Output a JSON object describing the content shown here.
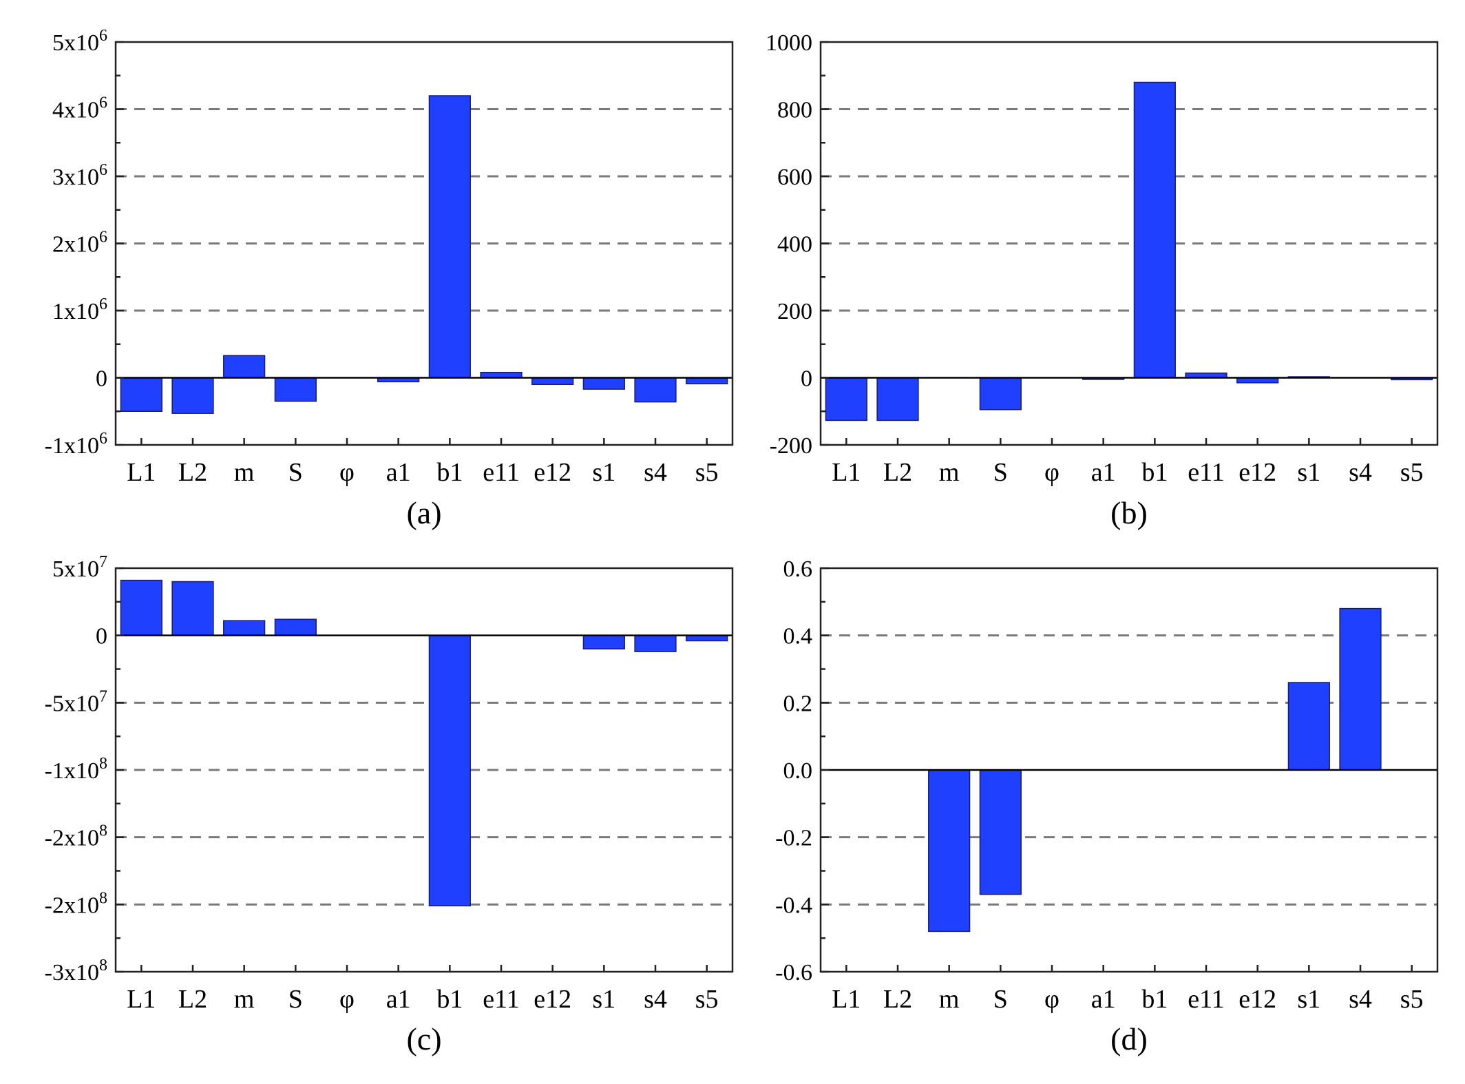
{
  "chart_data": [
    {
      "type": "bar",
      "caption": "(a)",
      "categories": [
        "L1",
        "L2",
        "m",
        "S",
        "φ",
        "a1",
        "b1",
        "e11",
        "e12",
        "s1",
        "s4",
        "s5"
      ],
      "values": [
        -500000,
        -530000,
        330000,
        -350000,
        0,
        -60000,
        4200000,
        80000,
        -100000,
        -170000,
        -360000,
        -90000
      ],
      "ylim": [
        -1000000,
        5000000
      ],
      "yticks": [
        {
          "value": -1000000,
          "base": "-1x10",
          "exp": "6"
        },
        {
          "value": 0,
          "base": "0",
          "exp": ""
        },
        {
          "value": 1000000,
          "base": "1x10",
          "exp": "6"
        },
        {
          "value": 2000000,
          "base": "2x10",
          "exp": "6"
        },
        {
          "value": 3000000,
          "base": "3x10",
          "exp": "6"
        },
        {
          "value": 4000000,
          "base": "4x10",
          "exp": "6"
        },
        {
          "value": 5000000,
          "base": "5x10",
          "exp": "6"
        }
      ],
      "gridlines": [
        1000000,
        2000000,
        3000000,
        4000000
      ],
      "zero_line": true
    },
    {
      "type": "bar",
      "caption": "(b)",
      "categories": [
        "L1",
        "L2",
        "m",
        "S",
        "φ",
        "a1",
        "b1",
        "e11",
        "e12",
        "s1",
        "s4",
        "s5"
      ],
      "values": [
        -127,
        -127,
        0,
        -95,
        0,
        -5,
        880,
        14,
        -15,
        3,
        0,
        -6
      ],
      "ylim": [
        -200,
        1000
      ],
      "yticks": [
        {
          "value": -200,
          "base": "-200",
          "exp": ""
        },
        {
          "value": 0,
          "base": "0",
          "exp": ""
        },
        {
          "value": 200,
          "base": "200",
          "exp": ""
        },
        {
          "value": 400,
          "base": "400",
          "exp": ""
        },
        {
          "value": 600,
          "base": "600",
          "exp": ""
        },
        {
          "value": 800,
          "base": "800",
          "exp": ""
        },
        {
          "value": 1000,
          "base": "1000",
          "exp": ""
        }
      ],
      "gridlines": [
        200,
        400,
        600,
        800
      ],
      "zero_line": true
    },
    {
      "type": "bar",
      "caption": "(c)",
      "categories": [
        "L1",
        "L2",
        "m",
        "S",
        "φ",
        "a1",
        "b1",
        "e11",
        "e12",
        "s1",
        "s4",
        "s5"
      ],
      "values": [
        41000000,
        40000000,
        11000000,
        12000000,
        0,
        0,
        -201000000,
        0,
        0,
        -10000000,
        -12000000,
        -4000000
      ],
      "ylim": [
        -250000000,
        50000000
      ],
      "yticks": [
        {
          "value": -250000000,
          "base": "-3x10",
          "exp": "8"
        },
        {
          "value": -200000000,
          "base": "-2x10",
          "exp": "8"
        },
        {
          "value": -150000000,
          "base": "-2x10",
          "exp": "8"
        },
        {
          "value": -100000000,
          "base": "-1x10",
          "exp": "8"
        },
        {
          "value": -50000000,
          "base": "-5x10",
          "exp": "7"
        },
        {
          "value": 0,
          "base": "0",
          "exp": ""
        },
        {
          "value": 50000000,
          "base": "5x10",
          "exp": "7"
        }
      ],
      "gridlines": [
        -50000000,
        -100000000,
        -150000000,
        -200000000
      ],
      "zero_line": true
    },
    {
      "type": "bar",
      "caption": "(d)",
      "categories": [
        "L1",
        "L2",
        "m",
        "S",
        "φ",
        "a1",
        "b1",
        "e11",
        "e12",
        "s1",
        "s4",
        "s5"
      ],
      "values": [
        0,
        0,
        -0.48,
        -0.37,
        0,
        0,
        0,
        0,
        0,
        0.26,
        0.48,
        0
      ],
      "ylim": [
        -0.6,
        0.6
      ],
      "yticks": [
        {
          "value": -0.6,
          "base": "-0.6",
          "exp": ""
        },
        {
          "value": -0.4,
          "base": "-0.4",
          "exp": ""
        },
        {
          "value": -0.2,
          "base": "-0.2",
          "exp": ""
        },
        {
          "value": 0.0,
          "base": "0.0",
          "exp": ""
        },
        {
          "value": 0.2,
          "base": "0.2",
          "exp": ""
        },
        {
          "value": 0.4,
          "base": "0.4",
          "exp": ""
        },
        {
          "value": 0.6,
          "base": "0.6",
          "exp": ""
        }
      ],
      "gridlines": [
        0.4,
        0.2,
        -0.2,
        -0.4
      ],
      "zero_line": true
    }
  ],
  "colors": {
    "bar_fill": "#2040ff",
    "bar_edge": "#1a1a6e",
    "grid": "#7a7a7a"
  }
}
